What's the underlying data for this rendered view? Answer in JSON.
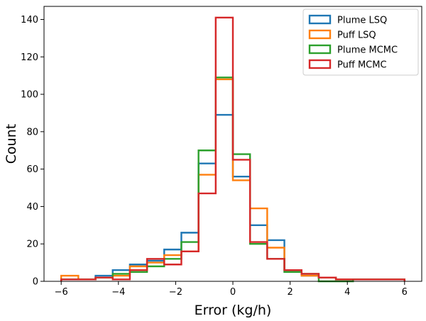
{
  "chart_data": {
    "type": "histogram-step",
    "xlabel": "Error (kg/h)",
    "ylabel": "Count",
    "xlim": [
      -6.6,
      6.6
    ],
    "ylim": [
      0,
      147
    ],
    "xticks": [
      -6,
      -4,
      -2,
      0,
      2,
      4,
      6
    ],
    "xtick_labels": [
      "−6",
      "−4",
      "−2",
      "0",
      "2",
      "4",
      "6"
    ],
    "yticks": [
      0,
      20,
      40,
      60,
      80,
      100,
      120,
      140
    ],
    "ytick_labels": [
      "0",
      "20",
      "40",
      "60",
      "80",
      "100",
      "120",
      "140"
    ],
    "bin_edges": [
      -6.0,
      -5.4,
      -4.8,
      -4.2,
      -3.6,
      -3.0,
      -2.4,
      -1.8,
      -1.2,
      -0.6,
      0.0,
      0.6,
      1.2,
      1.8,
      2.4,
      3.0,
      3.6,
      4.2,
      4.8,
      5.4,
      6.0
    ],
    "grid": false,
    "legend_position": "top-right",
    "series": [
      {
        "name": "Plume LSQ",
        "color": "#1f77b4",
        "values": [
          1,
          1,
          3,
          6,
          9,
          11,
          17,
          26,
          63,
          89,
          56,
          30,
          22,
          5,
          3,
          2,
          1,
          1,
          1,
          1
        ]
      },
      {
        "name": "Puff LSQ",
        "color": "#ff7f0e",
        "values": [
          3,
          1,
          2,
          3,
          8,
          10,
          14,
          16,
          57,
          108,
          54,
          39,
          18,
          6,
          3,
          2,
          1,
          1,
          1,
          1
        ]
      },
      {
        "name": "Plume MCMC",
        "color": "#2ca02c",
        "values": [
          1,
          1,
          2,
          4,
          5,
          8,
          12,
          21,
          70,
          109,
          68,
          20,
          12,
          5,
          4,
          0,
          0,
          1,
          1,
          1
        ]
      },
      {
        "name": "Puff MCMC",
        "color": "#d62728",
        "values": [
          1,
          1,
          2,
          1,
          6,
          12,
          9,
          16,
          47,
          141,
          65,
          21,
          12,
          6,
          4,
          2,
          1,
          1,
          1,
          1
        ]
      }
    ]
  }
}
